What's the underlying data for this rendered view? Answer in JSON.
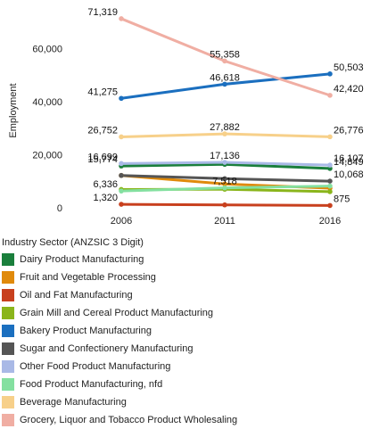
{
  "chart_data": {
    "type": "line",
    "ylabel": "Employment",
    "x": [
      "2006",
      "2011",
      "2016"
    ],
    "y_ticks": [
      "0",
      "20,000",
      "40,000",
      "60,000"
    ],
    "ylim": [
      0,
      75000
    ],
    "grid": false,
    "legend_title": "Industry Sector (ANZSIC 3 Digit)",
    "legend_placement": "bottom",
    "series": [
      {
        "name": "Dairy Product Manufacturing",
        "color": "#1a7f3c",
        "values": [
          15774,
          16400,
          14849
        ],
        "labels": [
          "15,774",
          "",
          "14,849"
        ]
      },
      {
        "name": "Fruit and Vegetable Processing",
        "color": "#e08a0b",
        "values": [
          12200,
          9000,
          7400
        ],
        "labels": [
          "",
          "",
          ""
        ]
      },
      {
        "name": "Oil and Fat Manufacturing",
        "color": "#c8401e",
        "values": [
          1320,
          1100,
          875
        ],
        "labels": [
          "1,320",
          "",
          "875"
        ]
      },
      {
        "name": "Grain Mill and Cereal Product Manufacturing",
        "color": "#8ab51b",
        "values": [
          6900,
          7000,
          6100
        ],
        "labels": [
          "",
          "",
          ""
        ]
      },
      {
        "name": "Bakery Product Manufacturing",
        "color": "#1b6fbf",
        "values": [
          41275,
          46618,
          50503
        ],
        "labels": [
          "41,275",
          "46,618",
          "50,503"
        ]
      },
      {
        "name": "Sugar and Confectionery Manufacturing",
        "color": "#555555",
        "values": [
          12200,
          11000,
          10068
        ],
        "labels": [
          "",
          "",
          "10,068"
        ]
      },
      {
        "name": "Other Food Product Manufacturing",
        "color": "#a9b9e6",
        "values": [
          16699,
          17136,
          16107
        ],
        "labels": [
          "16,699",
          "17,136",
          "16,107"
        ]
      },
      {
        "name": "Food Product Manufacturing, nfd",
        "color": "#84e0a0",
        "values": [
          6336,
          7518,
          8200
        ],
        "labels": [
          "6,336",
          "7,518",
          ""
        ]
      },
      {
        "name": "Beverage Manufacturing",
        "color": "#f7d08a",
        "values": [
          26752,
          27882,
          26776
        ],
        "labels": [
          "26,752",
          "27,882",
          "26,776"
        ]
      },
      {
        "name": "Grocery, Liquor and Tobacco Product Wholesaling",
        "color": "#f0aea3",
        "values": [
          71319,
          55358,
          42420
        ],
        "labels": [
          "71,319",
          "55,358",
          "42,420"
        ]
      }
    ]
  }
}
